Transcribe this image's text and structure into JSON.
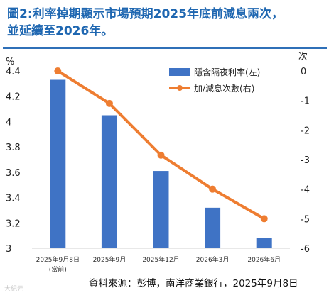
{
  "header": {
    "title_line1": "圖2:利率掉期顯示市場預期2025年底前減息兩次，",
    "title_line2": "並延續至2026年。"
  },
  "footer": {
    "source": "資料來源：彭博，南洋商業銀行，2025年9月8日",
    "watermark": "大紀元"
  },
  "chart_data": {
    "type": "bar+line",
    "categories": [
      "2025年9月8日",
      "2025年9月",
      "2025年12月",
      "2026年3月",
      "2026年6月"
    ],
    "category_sublabels": [
      "(當前)",
      "",
      "",
      "",
      ""
    ],
    "series": [
      {
        "name": "隱含隔夜利率(左)",
        "type": "bar",
        "axis": "left",
        "color": "#3f73c5",
        "values": [
          4.33,
          4.05,
          3.61,
          3.32,
          3.08
        ]
      },
      {
        "name": "加/減息次數(右)",
        "type": "line",
        "axis": "right",
        "color": "#ee7d31",
        "values": [
          0,
          -1.1,
          -2.85,
          -4.0,
          -5.0
        ]
      }
    ],
    "y_left": {
      "unit": "%",
      "min": 3,
      "max": 4.4,
      "ticks": [
        "3",
        "3.2",
        "3.4",
        "3.6",
        "3.8",
        "4",
        "4.2",
        "4.4"
      ]
    },
    "y_right": {
      "unit": "次",
      "min": -6,
      "max": 0,
      "ticks": [
        "0",
        "-1",
        "-2",
        "-3",
        "-4",
        "-5",
        "-6"
      ]
    },
    "legend_position": "top-right",
    "grid": false
  }
}
